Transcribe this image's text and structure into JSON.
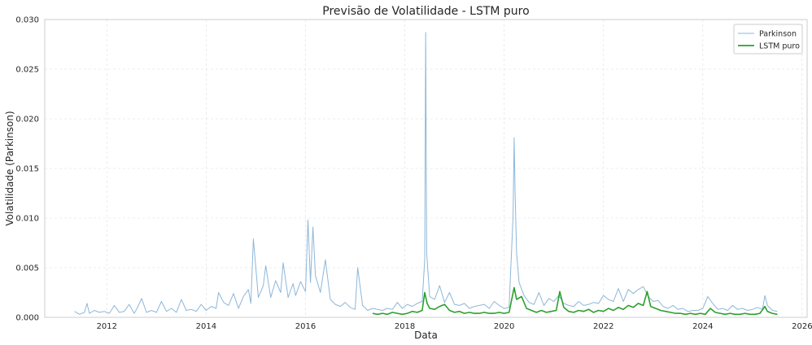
{
  "chart_data": {
    "type": "line",
    "title": "Previsão de Volatilidade - LSTM puro",
    "xlabel": "Data",
    "ylabel": "Volatilidade (Parkinson)",
    "xlim": [
      2010.75,
      2026.1
    ],
    "ylim": [
      0,
      0.03
    ],
    "x_ticks": [
      2012,
      2014,
      2016,
      2018,
      2020,
      2022,
      2024,
      2026
    ],
    "y_ticks": [
      0,
      0.005,
      0.01,
      0.015,
      0.02,
      0.025,
      0.03
    ],
    "x_tick_labels": [
      "2012",
      "2014",
      "2016",
      "2018",
      "2020",
      "2022",
      "2024",
      "2026"
    ],
    "y_tick_labels": [
      "0.000",
      "0.005",
      "0.010",
      "0.015",
      "0.020",
      "0.025",
      "0.030"
    ],
    "grid": true,
    "legend_position": "top-right",
    "series": [
      {
        "name": "Parkinson",
        "color": "#8db7d9",
        "x": [
          2011.35,
          2011.45,
          2011.55,
          2011.6,
          2011.65,
          2011.75,
          2011.85,
          2011.95,
          2012.05,
          2012.15,
          2012.25,
          2012.35,
          2012.45,
          2012.55,
          2012.6,
          2012.7,
          2012.8,
          2012.9,
          2013.0,
          2013.1,
          2013.2,
          2013.3,
          2013.4,
          2013.5,
          2013.6,
          2013.7,
          2013.8,
          2013.9,
          2014.0,
          2014.1,
          2014.2,
          2014.25,
          2014.35,
          2014.45,
          2014.55,
          2014.65,
          2014.75,
          2014.85,
          2014.9,
          2014.95,
          2015.05,
          2015.15,
          2015.2,
          2015.3,
          2015.4,
          2015.5,
          2015.55,
          2015.65,
          2015.75,
          2015.8,
          2015.9,
          2016.0,
          2016.05,
          2016.1,
          2016.15,
          2016.2,
          2016.3,
          2016.4,
          2016.5,
          2016.6,
          2016.7,
          2016.8,
          2016.9,
          2017.0,
          2017.05,
          2017.15,
          2017.25,
          2017.35,
          2017.45,
          2017.55,
          2017.65,
          2017.75,
          2017.85,
          2017.95,
          2018.05,
          2018.15,
          2018.25,
          2018.35,
          2018.4,
          2018.42,
          2018.44,
          2018.5,
          2018.6,
          2018.7,
          2018.8,
          2018.9,
          2019.0,
          2019.1,
          2019.2,
          2019.3,
          2019.4,
          2019.5,
          2019.6,
          2019.7,
          2019.8,
          2019.9,
          2020.0,
          2020.1,
          2020.18,
          2020.2,
          2020.22,
          2020.25,
          2020.3,
          2020.4,
          2020.5,
          2020.6,
          2020.7,
          2020.8,
          2020.9,
          2021.0,
          2021.1,
          2021.2,
          2021.3,
          2021.4,
          2021.5,
          2021.6,
          2021.7,
          2021.8,
          2021.9,
          2022.0,
          2022.1,
          2022.2,
          2022.3,
          2022.4,
          2022.5,
          2022.6,
          2022.7,
          2022.8,
          2022.9,
          2023.0,
          2023.1,
          2023.2,
          2023.3,
          2023.4,
          2023.5,
          2023.6,
          2023.7,
          2023.8,
          2023.9,
          2024.0,
          2024.1,
          2024.2,
          2024.3,
          2024.4,
          2024.5,
          2024.6,
          2024.7,
          2024.8,
          2024.9,
          2025.0,
          2025.1,
          2025.2,
          2025.25,
          2025.3,
          2025.4,
          2025.5
        ],
        "y": [
          0.0006,
          0.0003,
          0.0005,
          0.0014,
          0.0004,
          0.0007,
          0.0005,
          0.0006,
          0.0004,
          0.0012,
          0.0005,
          0.0006,
          0.0013,
          0.0004,
          0.0008,
          0.0019,
          0.0005,
          0.0007,
          0.0005,
          0.0016,
          0.0006,
          0.0009,
          0.0005,
          0.0018,
          0.0007,
          0.0008,
          0.0006,
          0.0013,
          0.0007,
          0.0011,
          0.0009,
          0.0025,
          0.0015,
          0.0012,
          0.0024,
          0.0009,
          0.0021,
          0.0028,
          0.0014,
          0.0079,
          0.002,
          0.0032,
          0.0052,
          0.002,
          0.0037,
          0.0025,
          0.0055,
          0.002,
          0.0034,
          0.0022,
          0.0036,
          0.0026,
          0.0098,
          0.0035,
          0.0091,
          0.0042,
          0.0025,
          0.0058,
          0.0018,
          0.0013,
          0.0011,
          0.0015,
          0.001,
          0.0008,
          0.005,
          0.0012,
          0.0007,
          0.0009,
          0.0008,
          0.0007,
          0.0009,
          0.0008,
          0.0015,
          0.0009,
          0.0013,
          0.0011,
          0.0014,
          0.0016,
          0.0058,
          0.0287,
          0.0065,
          0.0021,
          0.0018,
          0.0032,
          0.0015,
          0.0025,
          0.0013,
          0.0012,
          0.0014,
          0.0009,
          0.0011,
          0.0012,
          0.0013,
          0.0009,
          0.0016,
          0.0012,
          0.0009,
          0.001,
          0.0102,
          0.0181,
          0.0125,
          0.0065,
          0.0035,
          0.0022,
          0.0015,
          0.0013,
          0.0025,
          0.0012,
          0.0019,
          0.0016,
          0.0022,
          0.0014,
          0.0012,
          0.0011,
          0.0016,
          0.0012,
          0.0013,
          0.0015,
          0.0014,
          0.0022,
          0.0018,
          0.0016,
          0.0029,
          0.0016,
          0.0028,
          0.0024,
          0.0028,
          0.0031,
          0.0021,
          0.0016,
          0.0017,
          0.0011,
          0.0009,
          0.0012,
          0.0008,
          0.0009,
          0.0006,
          0.0007,
          0.0007,
          0.0009,
          0.0021,
          0.0014,
          0.0008,
          0.0009,
          0.0007,
          0.0012,
          0.0008,
          0.0009,
          0.0007,
          0.0008,
          0.001,
          0.0008,
          0.0022,
          0.0012,
          0.0007,
          0.0006
        ]
      },
      {
        "name": "LSTM puro",
        "color": "#2ca02c",
        "x": [
          2017.35,
          2017.45,
          2017.55,
          2017.65,
          2017.75,
          2017.85,
          2017.95,
          2018.05,
          2018.15,
          2018.25,
          2018.35,
          2018.4,
          2018.45,
          2018.5,
          2018.6,
          2018.7,
          2018.8,
          2018.9,
          2019.0,
          2019.1,
          2019.2,
          2019.3,
          2019.4,
          2019.5,
          2019.6,
          2019.7,
          2019.8,
          2019.9,
          2020.0,
          2020.1,
          2020.2,
          2020.25,
          2020.35,
          2020.45,
          2020.55,
          2020.65,
          2020.75,
          2020.85,
          2020.95,
          2021.05,
          2021.12,
          2021.2,
          2021.3,
          2021.4,
          2021.5,
          2021.6,
          2021.7,
          2021.8,
          2021.9,
          2022.0,
          2022.1,
          2022.2,
          2022.3,
          2022.4,
          2022.5,
          2022.6,
          2022.7,
          2022.8,
          2022.88,
          2022.95,
          2023.05,
          2023.15,
          2023.25,
          2023.35,
          2023.45,
          2023.55,
          2023.65,
          2023.75,
          2023.85,
          2023.95,
          2024.05,
          2024.15,
          2024.25,
          2024.35,
          2024.45,
          2024.55,
          2024.65,
          2024.75,
          2024.85,
          2024.95,
          2025.05,
          2025.15,
          2025.25,
          2025.3,
          2025.4,
          2025.5
        ],
        "y": [
          0.0004,
          0.0003,
          0.0004,
          0.0003,
          0.0005,
          0.0004,
          0.0003,
          0.0004,
          0.0006,
          0.0005,
          0.0007,
          0.0025,
          0.0014,
          0.0009,
          0.0008,
          0.0011,
          0.0013,
          0.0007,
          0.0005,
          0.0006,
          0.0004,
          0.0005,
          0.0004,
          0.0004,
          0.0005,
          0.0004,
          0.0004,
          0.0005,
          0.0004,
          0.0005,
          0.003,
          0.0018,
          0.0021,
          0.0009,
          0.0007,
          0.0005,
          0.0007,
          0.0005,
          0.0006,
          0.0007,
          0.0026,
          0.001,
          0.0006,
          0.0005,
          0.0007,
          0.0006,
          0.0008,
          0.0005,
          0.0007,
          0.0006,
          0.0009,
          0.0007,
          0.001,
          0.0008,
          0.0012,
          0.001,
          0.0014,
          0.0012,
          0.0026,
          0.0011,
          0.0009,
          0.0007,
          0.0006,
          0.0005,
          0.0004,
          0.0004,
          0.0003,
          0.0004,
          0.0003,
          0.0004,
          0.0003,
          0.0009,
          0.0005,
          0.0004,
          0.0003,
          0.0004,
          0.0003,
          0.0003,
          0.0004,
          0.0003,
          0.0003,
          0.0004,
          0.0011,
          0.0006,
          0.0004,
          0.0003
        ]
      }
    ]
  }
}
